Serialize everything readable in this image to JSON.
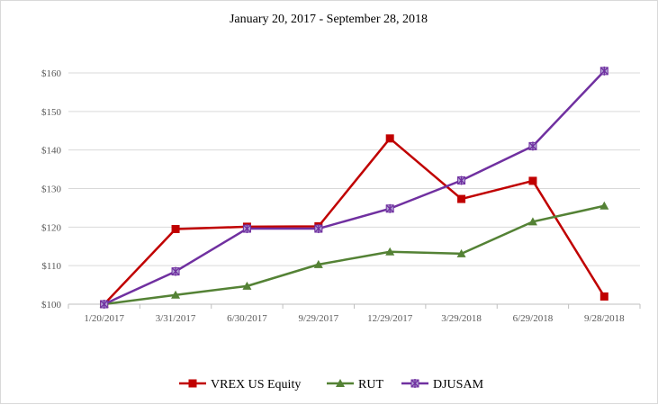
{
  "chart_data": {
    "type": "line",
    "title": "January  20, 2017 - September  28, 2018",
    "categories": [
      "1/20/2017",
      "3/31/2017",
      "6/30/2017",
      "9/29/2017",
      "12/29/2017",
      "3/29/2018",
      "6/29/2018",
      "9/28/2018"
    ],
    "ylim": [
      100,
      160
    ],
    "yticks": [
      100,
      110,
      120,
      130,
      140,
      150,
      160
    ],
    "ytick_labels": [
      "$100",
      "$110",
      "$120",
      "$130",
      "$140",
      "$150",
      "$160"
    ],
    "grid": "horizontal",
    "legend_position": "bottom",
    "series": [
      {
        "name": "VREX US Equity",
        "color": "#c00000",
        "marker": "square",
        "values": [
          100,
          119.5,
          120.1,
          120.2,
          143,
          127.3,
          132,
          102
        ]
      },
      {
        "name": "RUT",
        "color": "#548235",
        "marker": "triangle",
        "values": [
          100,
          102.4,
          104.7,
          110.3,
          113.6,
          113.1,
          121.4,
          125.5
        ]
      },
      {
        "name": "DJUSAM",
        "color": "#7030a0",
        "marker": "star",
        "values": [
          100,
          108.5,
          119.6,
          119.6,
          124.8,
          132.1,
          141,
          160.5
        ]
      }
    ]
  }
}
